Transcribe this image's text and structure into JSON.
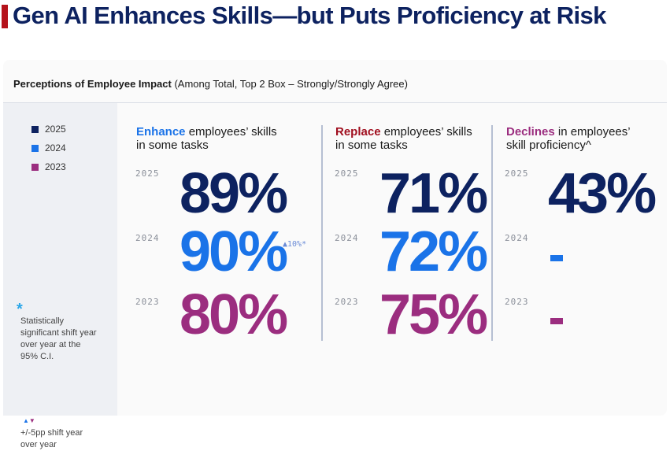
{
  "title": "Gen AI Enhances Skills—but Puts Proficiency at Risk",
  "card": {
    "header_bold": "Perceptions of Employee Impact",
    "header_rest": " (Among Total, Top 2 Box – Strongly/Strongly Agree)"
  },
  "colors": {
    "title_accent": "#b5121b",
    "y2025": "#0d2260",
    "y2024": "#1a73e8",
    "y2023": "#9b2d7f",
    "enhance": "#1a73e8",
    "replace": "#a00f1f",
    "declines": "#9b2d7f"
  },
  "legend": [
    {
      "year": "2025",
      "color": "#0d2260"
    },
    {
      "year": "2024",
      "color": "#1a73e8"
    },
    {
      "year": "2023",
      "color": "#9b2d7f"
    }
  ],
  "notes": {
    "asterisk": "*",
    "significance": [
      "Statistically",
      "significant shift year",
      "over year at the",
      "95% C.I."
    ],
    "shift": [
      "+/-5pp shift year",
      "over year"
    ]
  },
  "columns": [
    {
      "keyword": "Enhance",
      "head_line1_rest": " employees’ skills",
      "head_line2": "in some tasks",
      "values": {
        "2025": "89%",
        "2024": "90%",
        "2023": "80%"
      },
      "delta": "▲10%*"
    },
    {
      "keyword": "Replace",
      "head_line1_rest": " employees’ skills",
      "head_line2": "in some tasks",
      "values": {
        "2025": "71%",
        "2024": "72%",
        "2023": "75%"
      }
    },
    {
      "keyword": "Declines",
      "head_line1_rest": " in employees’",
      "head_line2": "skill proficiency^",
      "values": {
        "2025": "43%",
        "2024": "-",
        "2023": "-"
      }
    }
  ],
  "years": [
    "2025",
    "2024",
    "2023"
  ]
}
